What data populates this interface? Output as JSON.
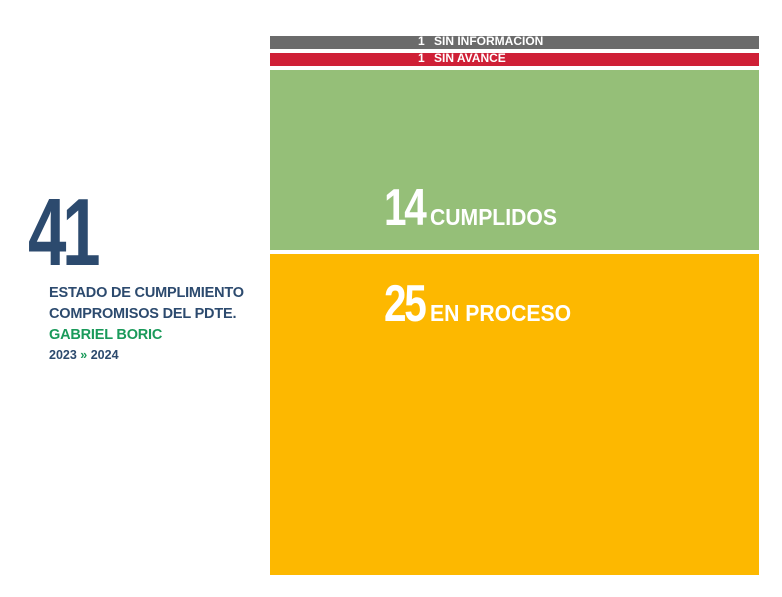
{
  "total": "41",
  "caption": {
    "line1": "ESTADO DE CUMPLIMIENTO",
    "line2": "COMPROMISOS DEL PDTE.",
    "name": "GABRIEL BORIC",
    "year_start": "2023",
    "arrow": "»",
    "year_end": "2024"
  },
  "colors": {
    "total": "#2c4a6e",
    "caption": "#2c4a6e",
    "name": "#1a9a5a",
    "sin_informacion": "#6b6b6b",
    "sin_avance": "#cf1f36",
    "cumplidos": "#95bf78",
    "en_proceso": "#fdb800"
  },
  "chart_data": {
    "type": "bar",
    "orientation": "stacked-vertical",
    "total": 41,
    "categories": [
      "SIN INFORMACIÓN",
      "SIN AVANCE",
      "CUMPLIDOS",
      "EN PROCESO"
    ],
    "values": [
      1,
      1,
      14,
      25
    ],
    "value_labels": [
      "1",
      "1",
      "14",
      "25"
    ],
    "colors": [
      "#6b6b6b",
      "#cf1f36",
      "#95bf78",
      "#fdb800"
    ]
  }
}
